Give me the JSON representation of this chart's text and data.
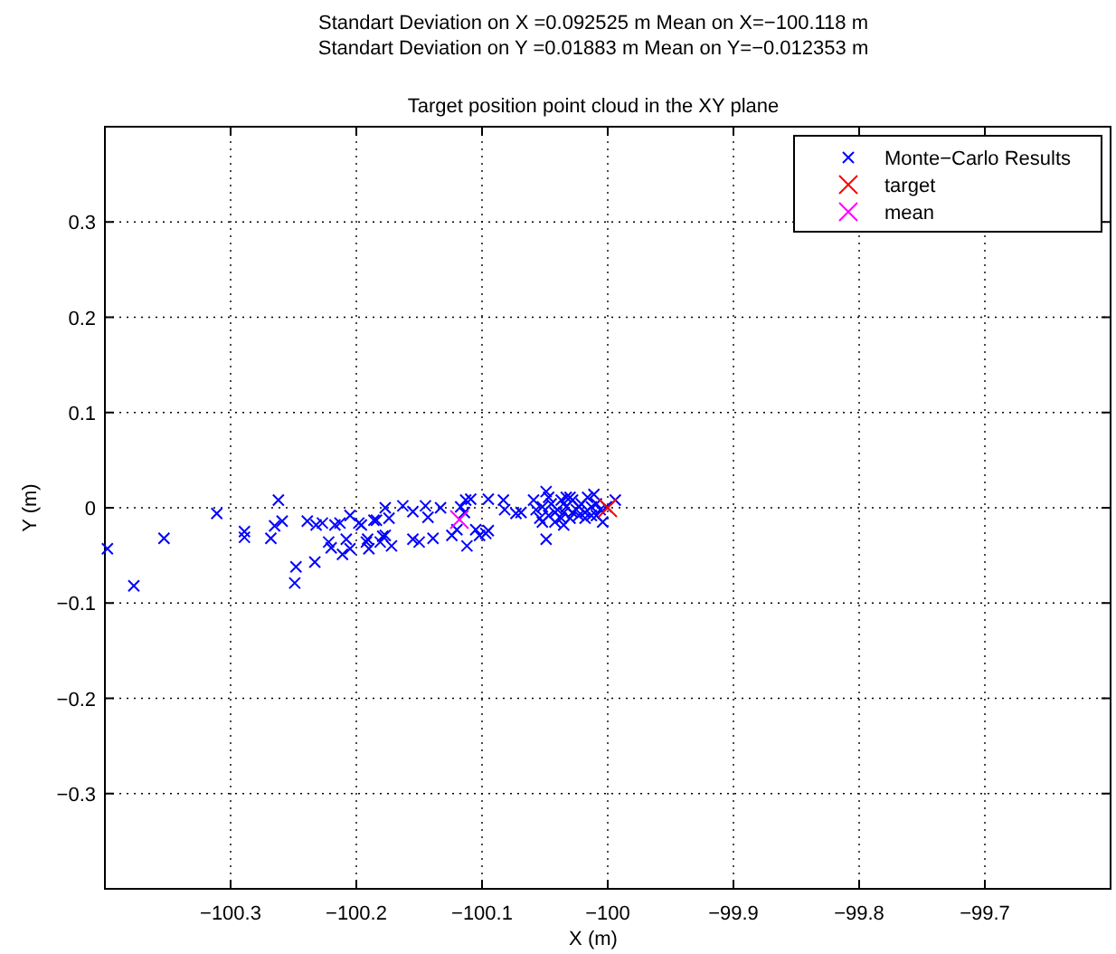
{
  "chart_data": {
    "type": "scatter",
    "title": "Target position point cloud in the XY plane",
    "annotations": [
      "Standart Deviation on X =0.092525 m   Mean on X=−100.118 m",
      "Standart Deviation on Y =0.01883 m   Mean on Y=−0.012353 m"
    ],
    "xlabel": "X (m)",
    "ylabel": "Y (m)",
    "xlim": [
      -100.4,
      -99.6
    ],
    "ylim": [
      -0.4,
      0.4
    ],
    "xticks": [
      {
        "value": -100.3,
        "label": "−100.3"
      },
      {
        "value": -100.2,
        "label": "−100.2"
      },
      {
        "value": -100.1,
        "label": "−100.1"
      },
      {
        "value": -100,
        "label": "−100"
      },
      {
        "value": -99.9,
        "label": "−99.9"
      },
      {
        "value": -99.8,
        "label": "−99.8"
      },
      {
        "value": -99.7,
        "label": "−99.7"
      }
    ],
    "yticks": [
      {
        "value": -0.3,
        "label": "−0.3"
      },
      {
        "value": -0.2,
        "label": "−0.2"
      },
      {
        "value": -0.1,
        "label": "−0.1"
      },
      0,
      0.1,
      0.2,
      0.3
    ],
    "grid": true,
    "line_style": "dotted",
    "legend": "top right",
    "marker": "cross",
    "series": [
      {
        "name": "Monte−Carlo Results",
        "color": "#0000ff",
        "x": [
          -100.398,
          -100.377,
          -100.353,
          -100.311,
          -100.289,
          -100.289,
          -100.268,
          -100.262,
          -100.265,
          -100.259,
          -100.248,
          -100.249,
          -100.233,
          -100.239,
          -100.232,
          -100.227,
          -100.217,
          -100.213,
          -100.205,
          -100.222,
          -100.22,
          -100.208,
          -100.205,
          -100.211,
          -100.198,
          -100.186,
          -100.177,
          -100.192,
          -100.19,
          -100.181,
          -100.177,
          -100.196,
          -100.184,
          -100.191,
          -100.179,
          -100.174,
          -100.172,
          -100.163,
          -100.155,
          -100.145,
          -100.143,
          -100.133,
          -100.155,
          -100.15,
          -100.139,
          -100.124,
          -100.12,
          -100.117,
          -100.113,
          -100.109,
          -100.114,
          -100.112,
          -100.105,
          -100.102,
          -100.095,
          -100.097,
          -100.095,
          -100.083,
          -100.082,
          -100.073,
          -100.069,
          -100.059,
          -100.057,
          -100.054,
          -100.052,
          -100.049,
          -100.047,
          -100.045,
          -100.042,
          -100.04,
          -100.037,
          -100.035,
          -100.033,
          -100.03,
          -100.028,
          -100.025,
          -100.023,
          -100.021,
          -100.018,
          -100.016,
          -100.013,
          -100.011,
          -100.009,
          -100.006,
          -100.004,
          -100.001,
          -100.052,
          -100.047,
          -100.042,
          -100.037,
          -100.033,
          -100.028,
          -100.023,
          -100.018,
          -100.013,
          -100.009,
          -100.03,
          -100.035,
          -100.049,
          -99.994
        ],
        "values": [
          -0.043,
          -0.082,
          -0.032,
          -0.006,
          -0.025,
          -0.031,
          -0.032,
          0.008,
          -0.019,
          -0.014,
          -0.062,
          -0.079,
          -0.057,
          -0.014,
          -0.018,
          -0.016,
          -0.018,
          -0.016,
          -0.008,
          -0.036,
          -0.042,
          -0.033,
          -0.043,
          -0.049,
          -0.016,
          -0.013,
          0,
          -0.036,
          -0.043,
          -0.036,
          -0.029,
          -0.018,
          -0.013,
          -0.033,
          -0.03,
          -0.011,
          -0.04,
          0.002,
          -0.004,
          0.002,
          -0.01,
          0,
          -0.033,
          -0.036,
          -0.032,
          -0.029,
          -0.023,
          0.001,
          0.008,
          0.009,
          -0.005,
          -0.04,
          -0.023,
          -0.029,
          -0.024,
          -0.027,
          0.009,
          0.008,
          -0.002,
          -0.006,
          -0.005,
          0.008,
          -0.002,
          -0.011,
          0.001,
          0.017,
          -0.008,
          0.004,
          -0.015,
          -0.002,
          0.008,
          -0.005,
          0.001,
          -0.011,
          0.008,
          -0.002,
          -0.008,
          0.004,
          -0.005,
          0.011,
          0.001,
          0.014,
          -0.008,
          -0.002,
          -0.015,
          0.001,
          -0.015,
          0.011,
          -0.005,
          -0.011,
          0.011,
          -0.005,
          0.001,
          -0.011,
          -0.008,
          0.004,
          0.011,
          -0.018,
          -0.033,
          0.008
        ]
      },
      {
        "name": "target",
        "color": "#ff0000",
        "x": [
          -100
        ],
        "values": [
          0
        ]
      },
      {
        "name": "mean",
        "color": "#ff00ff",
        "x": [
          -100.118
        ],
        "values": [
          -0.012353
        ]
      }
    ]
  }
}
